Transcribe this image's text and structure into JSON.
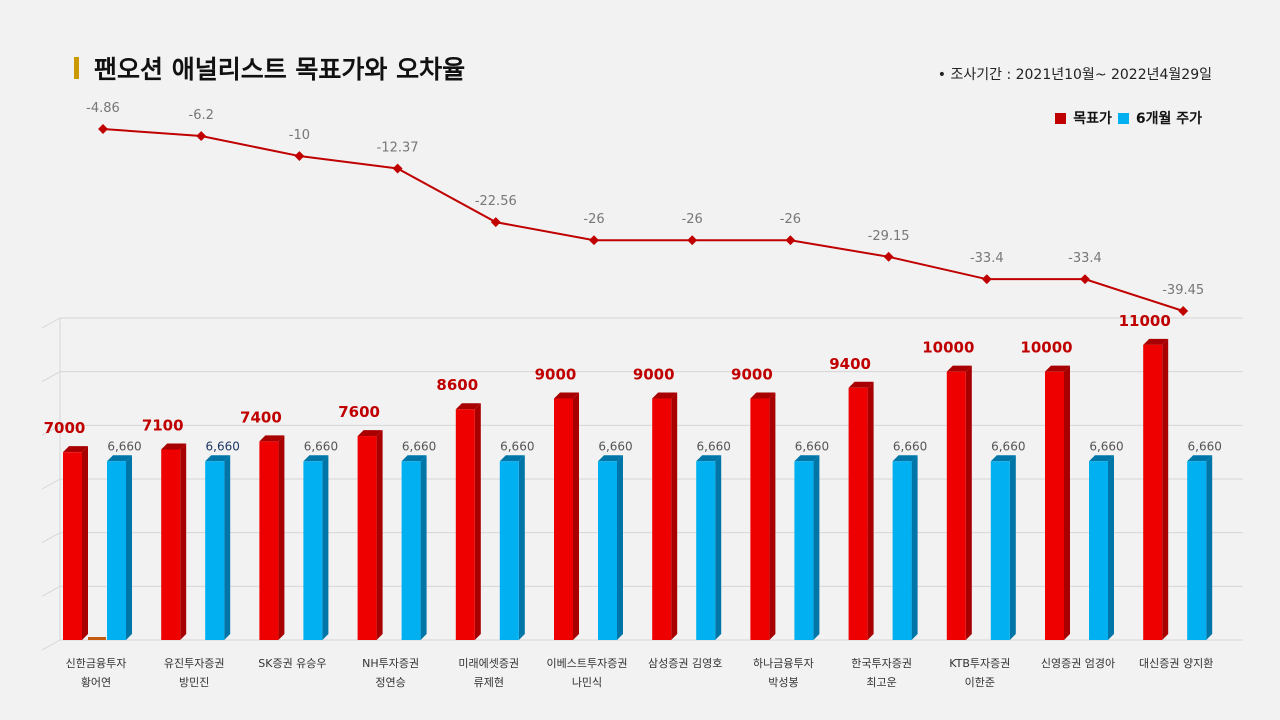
{
  "title": "팬오션 애널리스트 목표가와 오차율",
  "survey_period": "•  조사기간 : 2021년10월~ 2022년4월29일",
  "colors": {
    "target": "#ee0000",
    "target_dark": "#a80000",
    "price": "#00b0f0",
    "price_dark": "#0076a8",
    "error_line": "#c00000",
    "title_bar": "#c99a06"
  },
  "legend": {
    "target_label": "목표가",
    "price_label": "6개월 주가"
  },
  "chart_data": [
    {
      "type": "line",
      "name": "error_rate",
      "categories": [
        "신한금융투자 황어연",
        "유진투자증권 방민진",
        "SK증권 유승우",
        "NH투자증권 정연승",
        "미래에셋증권 류제현",
        "이베스트투자증권 나민식",
        "삼성증권 김영호",
        "하나금융투자 박성봉",
        "한국투자증권 최고운",
        "KTB투자증권 이한준",
        "신영증권 엄경아",
        "대신증권 양지환"
      ],
      "values": [
        -4.86,
        -6.2,
        -10,
        -12.37,
        -22.56,
        -26,
        -26,
        -26,
        -29.15,
        -33.4,
        -33.4,
        -39.45
      ],
      "value_labels": [
        "-4.86",
        "-6.2",
        "-10",
        "-12.37",
        "-22.56",
        "-26",
        "-26",
        "-26",
        "-29.15",
        "-33.4",
        "-33.4",
        "-39.45"
      ],
      "ylim": [
        -40,
        0
      ]
    },
    {
      "type": "bar",
      "categories": [
        [
          "신한금융투자",
          "황어연"
        ],
        [
          "유진투자증권",
          "방민진"
        ],
        [
          "SK증권 유승우"
        ],
        [
          "NH투자증권",
          "정연승"
        ],
        [
          "미래에셋증권",
          "류제현"
        ],
        [
          "이베스트투자증권",
          "나민식"
        ],
        [
          "삼성증권 김영호"
        ],
        [
          "하나금융투자",
          "박성봉"
        ],
        [
          "한국투자증권",
          "최고운"
        ],
        [
          "KTB투자증권",
          "이한준"
        ],
        [
          "신영증권 엄경아"
        ],
        [
          "대신증권 양지환"
        ]
      ],
      "series": [
        {
          "name": "목표가",
          "values": [
            7000,
            7100,
            7400,
            7600,
            8600,
            9000,
            9000,
            9000,
            9400,
            10000,
            10000,
            11000
          ],
          "labels": [
            "7000",
            "7100",
            "7400",
            "7600",
            "8600",
            "9000",
            "9000",
            "9000",
            "9400",
            "10000",
            "10000",
            "11000"
          ]
        },
        {
          "name": "6개월 주가",
          "values": [
            6660,
            6660,
            6660,
            6660,
            6660,
            6660,
            6660,
            6660,
            6660,
            6660,
            6660,
            6660
          ],
          "labels": [
            "6,660",
            "6,660",
            "6,660",
            "6,660",
            "6,660",
            "6,660",
            "6,660",
            "6,660",
            "6,660",
            "6,660",
            "6,660",
            "6,660"
          ]
        }
      ],
      "ylim": [
        0,
        12000
      ],
      "grid": true,
      "legend_position": "top-right"
    }
  ]
}
